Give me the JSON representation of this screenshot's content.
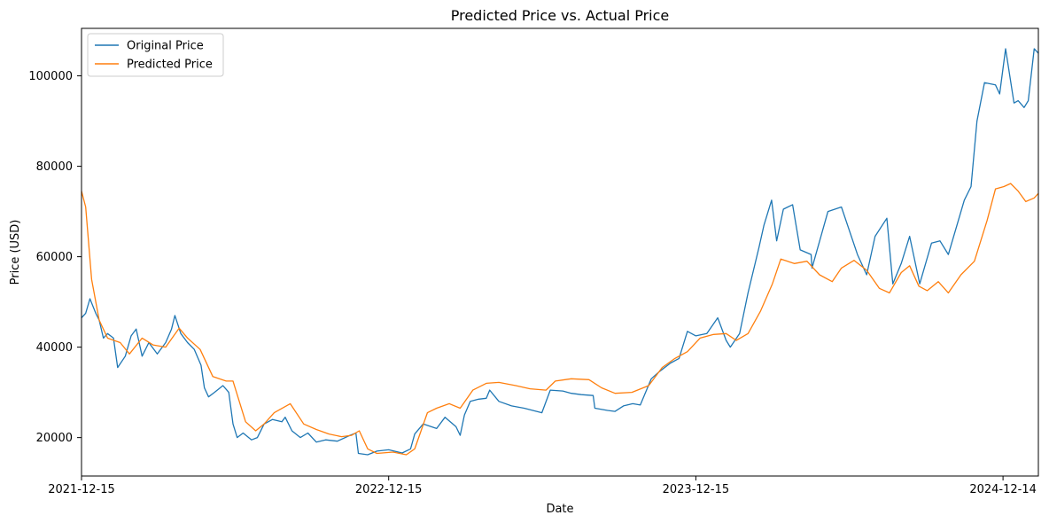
{
  "chart_data": {
    "type": "line",
    "title": "Predicted Price vs. Actual Price",
    "xlabel": "Date",
    "ylabel": "Price (USD)",
    "x_range": [
      "2021-12-15",
      "2025-01-25"
    ],
    "ylim": [
      11500,
      110500
    ],
    "x_ticks": [
      "2021-12-15",
      "2022-12-15",
      "2023-12-15",
      "2024-12-14"
    ],
    "y_ticks": [
      20000,
      40000,
      60000,
      80000,
      100000
    ],
    "grid": false,
    "legend_position": "upper-left",
    "series": [
      {
        "name": "Original Price",
        "color": "#1f77b4",
        "points": [
          [
            "2021-12-15",
            46500
          ],
          [
            "2021-12-20",
            47500
          ],
          [
            "2021-12-25",
            50700
          ],
          [
            "2022-01-01",
            47500
          ],
          [
            "2022-01-05",
            46000
          ],
          [
            "2022-01-10",
            42000
          ],
          [
            "2022-01-15",
            43000
          ],
          [
            "2022-01-22",
            42000
          ],
          [
            "2022-01-27",
            35500
          ],
          [
            "2022-02-05",
            38000
          ],
          [
            "2022-02-12",
            42500
          ],
          [
            "2022-02-18",
            44000
          ],
          [
            "2022-02-25",
            38000
          ],
          [
            "2022-03-05",
            41000
          ],
          [
            "2022-03-15",
            38500
          ],
          [
            "2022-03-25",
            41000
          ],
          [
            "2022-04-01",
            44000
          ],
          [
            "2022-04-05",
            47000
          ],
          [
            "2022-04-12",
            43000
          ],
          [
            "2022-04-20",
            41000
          ],
          [
            "2022-04-28",
            39500
          ],
          [
            "2022-05-06",
            36000
          ],
          [
            "2022-05-10",
            31000
          ],
          [
            "2022-05-15",
            29000
          ],
          [
            "2022-05-22",
            30000
          ],
          [
            "2022-06-01",
            31500
          ],
          [
            "2022-06-08",
            30000
          ],
          [
            "2022-06-13",
            23000
          ],
          [
            "2022-06-18",
            20000
          ],
          [
            "2022-06-25",
            21000
          ],
          [
            "2022-07-05",
            19500
          ],
          [
            "2022-07-12",
            20000
          ],
          [
            "2022-07-20",
            23000
          ],
          [
            "2022-07-30",
            24000
          ],
          [
            "2022-08-10",
            23500
          ],
          [
            "2022-08-14",
            24500
          ],
          [
            "2022-08-22",
            21500
          ],
          [
            "2022-09-01",
            20000
          ],
          [
            "2022-09-10",
            21000
          ],
          [
            "2022-09-20",
            19000
          ],
          [
            "2022-10-01",
            19500
          ],
          [
            "2022-10-15",
            19200
          ],
          [
            "2022-10-30",
            20500
          ],
          [
            "2022-11-06",
            21000
          ],
          [
            "2022-11-09",
            16500
          ],
          [
            "2022-11-20",
            16200
          ],
          [
            "2022-12-01",
            17000
          ],
          [
            "2022-12-15",
            17300
          ],
          [
            "2022-12-31",
            16600
          ],
          [
            "2023-01-10",
            17500
          ],
          [
            "2023-01-15",
            20800
          ],
          [
            "2023-01-25",
            23000
          ],
          [
            "2023-02-10",
            22000
          ],
          [
            "2023-02-20",
            24500
          ],
          [
            "2023-03-05",
            22400
          ],
          [
            "2023-03-10",
            20500
          ],
          [
            "2023-03-15",
            25000
          ],
          [
            "2023-03-22",
            28000
          ],
          [
            "2023-04-01",
            28500
          ],
          [
            "2023-04-10",
            28700
          ],
          [
            "2023-04-14",
            30500
          ],
          [
            "2023-04-25",
            28000
          ],
          [
            "2023-05-10",
            27000
          ],
          [
            "2023-05-25",
            26500
          ],
          [
            "2023-06-15",
            25500
          ],
          [
            "2023-06-25",
            30500
          ],
          [
            "2023-07-10",
            30300
          ],
          [
            "2023-07-20",
            29800
          ],
          [
            "2023-08-01",
            29500
          ],
          [
            "2023-08-15",
            29300
          ],
          [
            "2023-08-17",
            26500
          ],
          [
            "2023-09-01",
            26000
          ],
          [
            "2023-09-10",
            25800
          ],
          [
            "2023-09-20",
            27000
          ],
          [
            "2023-10-01",
            27500
          ],
          [
            "2023-10-10",
            27200
          ],
          [
            "2023-10-23",
            33000
          ],
          [
            "2023-11-01",
            34500
          ],
          [
            "2023-11-15",
            36500
          ],
          [
            "2023-11-25",
            37500
          ],
          [
            "2023-12-05",
            43500
          ],
          [
            "2023-12-15",
            42500
          ],
          [
            "2023-12-28",
            43000
          ],
          [
            "2024-01-10",
            46500
          ],
          [
            "2024-01-20",
            41500
          ],
          [
            "2024-01-25",
            40000
          ],
          [
            "2024-02-05",
            43000
          ],
          [
            "2024-02-15",
            52000
          ],
          [
            "2024-02-28",
            62000
          ],
          [
            "2024-03-05",
            67000
          ],
          [
            "2024-03-14",
            72500
          ],
          [
            "2024-03-20",
            63500
          ],
          [
            "2024-03-28",
            70500
          ],
          [
            "2024-04-08",
            71500
          ],
          [
            "2024-04-17",
            61500
          ],
          [
            "2024-04-30",
            60500
          ],
          [
            "2024-05-01",
            57500
          ],
          [
            "2024-05-20",
            70000
          ],
          [
            "2024-06-05",
            71000
          ],
          [
            "2024-06-24",
            60500
          ],
          [
            "2024-07-05",
            56000
          ],
          [
            "2024-07-15",
            64500
          ],
          [
            "2024-07-29",
            68500
          ],
          [
            "2024-08-05",
            54000
          ],
          [
            "2024-08-15",
            58500
          ],
          [
            "2024-08-25",
            64500
          ],
          [
            "2024-09-06",
            54000
          ],
          [
            "2024-09-20",
            63000
          ],
          [
            "2024-09-30",
            63500
          ],
          [
            "2024-10-10",
            60500
          ],
          [
            "2024-10-29",
            72500
          ],
          [
            "2024-11-06",
            75500
          ],
          [
            "2024-11-13",
            90000
          ],
          [
            "2024-11-22",
            98500
          ],
          [
            "2024-12-05",
            98000
          ],
          [
            "2024-12-10",
            96000
          ],
          [
            "2024-12-17",
            106000
          ],
          [
            "2024-12-27",
            94000
          ],
          [
            "2025-01-01",
            94500
          ],
          [
            "2025-01-08",
            93000
          ],
          [
            "2025-01-13",
            94500
          ],
          [
            "2025-01-20",
            106000
          ],
          [
            "2025-01-25",
            105000
          ]
        ]
      },
      {
        "name": "Predicted Price",
        "color": "#ff7f0e",
        "points": [
          [
            "2021-12-15",
            74500
          ],
          [
            "2021-12-20",
            71000
          ],
          [
            "2021-12-27",
            55000
          ],
          [
            "2022-01-05",
            46000
          ],
          [
            "2022-01-15",
            42000
          ],
          [
            "2022-01-30",
            41000
          ],
          [
            "2022-02-10",
            38500
          ],
          [
            "2022-02-25",
            42000
          ],
          [
            "2022-03-10",
            40500
          ],
          [
            "2022-03-25",
            40000
          ],
          [
            "2022-04-10",
            44200
          ],
          [
            "2022-04-20",
            42000
          ],
          [
            "2022-05-05",
            39500
          ],
          [
            "2022-05-20",
            33500
          ],
          [
            "2022-06-05",
            32500
          ],
          [
            "2022-06-13",
            32500
          ],
          [
            "2022-06-28",
            23500
          ],
          [
            "2022-07-10",
            21500
          ],
          [
            "2022-07-20",
            23000
          ],
          [
            "2022-08-01",
            25500
          ],
          [
            "2022-08-20",
            27500
          ],
          [
            "2022-09-05",
            23000
          ],
          [
            "2022-09-20",
            21800
          ],
          [
            "2022-10-05",
            20800
          ],
          [
            "2022-10-20",
            20200
          ],
          [
            "2022-11-01",
            20500
          ],
          [
            "2022-11-10",
            21500
          ],
          [
            "2022-11-20",
            17500
          ],
          [
            "2022-12-01",
            16500
          ],
          [
            "2022-12-20",
            16800
          ],
          [
            "2023-01-05",
            16200
          ],
          [
            "2023-01-15",
            17500
          ],
          [
            "2023-01-30",
            25500
          ],
          [
            "2023-02-10",
            26500
          ],
          [
            "2023-02-25",
            27500
          ],
          [
            "2023-03-10",
            26500
          ],
          [
            "2023-03-25",
            30500
          ],
          [
            "2023-04-10",
            32000
          ],
          [
            "2023-04-25",
            32200
          ],
          [
            "2023-05-15",
            31500
          ],
          [
            "2023-06-01",
            30800
          ],
          [
            "2023-06-20",
            30500
          ],
          [
            "2023-07-01",
            32500
          ],
          [
            "2023-07-20",
            33000
          ],
          [
            "2023-08-10",
            32800
          ],
          [
            "2023-08-25",
            31000
          ],
          [
            "2023-09-10",
            29800
          ],
          [
            "2023-09-30",
            30000
          ],
          [
            "2023-10-20",
            31500
          ],
          [
            "2023-11-05",
            35500
          ],
          [
            "2023-11-20",
            37500
          ],
          [
            "2023-12-05",
            39000
          ],
          [
            "2023-12-20",
            42000
          ],
          [
            "2024-01-05",
            42800
          ],
          [
            "2024-01-20",
            43000
          ],
          [
            "2024-02-01",
            41500
          ],
          [
            "2024-02-15",
            43000
          ],
          [
            "2024-03-01",
            48000
          ],
          [
            "2024-03-15",
            54000
          ],
          [
            "2024-03-25",
            59500
          ],
          [
            "2024-04-10",
            58500
          ],
          [
            "2024-04-25",
            59000
          ],
          [
            "2024-05-10",
            56000
          ],
          [
            "2024-05-25",
            54500
          ],
          [
            "2024-06-05",
            57500
          ],
          [
            "2024-06-20",
            59200
          ],
          [
            "2024-07-05",
            57000
          ],
          [
            "2024-07-20",
            53000
          ],
          [
            "2024-08-01",
            52000
          ],
          [
            "2024-08-15",
            56500
          ],
          [
            "2024-08-25",
            58000
          ],
          [
            "2024-09-05",
            53500
          ],
          [
            "2024-09-15",
            52500
          ],
          [
            "2024-09-28",
            54500
          ],
          [
            "2024-10-10",
            52000
          ],
          [
            "2024-10-25",
            56000
          ],
          [
            "2024-11-10",
            59000
          ],
          [
            "2024-11-25",
            68000
          ],
          [
            "2024-12-05",
            75000
          ],
          [
            "2024-12-15",
            75500
          ],
          [
            "2024-12-23",
            76200
          ],
          [
            "2025-01-01",
            74500
          ],
          [
            "2025-01-10",
            72200
          ],
          [
            "2025-01-20",
            73000
          ],
          [
            "2025-01-25",
            74000
          ]
        ]
      }
    ]
  }
}
